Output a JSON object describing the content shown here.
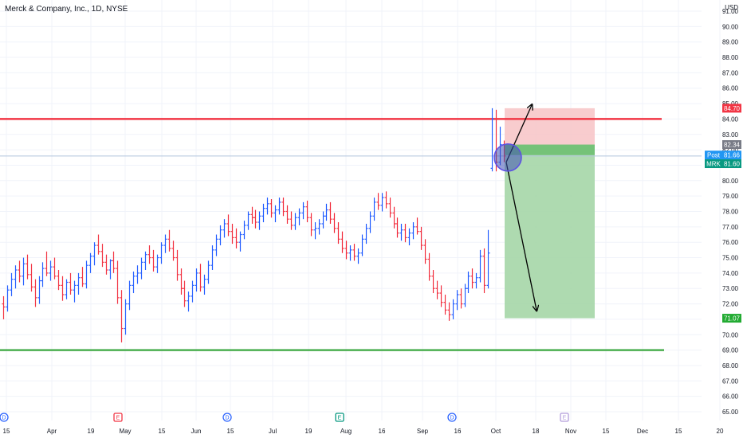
{
  "header": {
    "title": "Merck & Company, Inc., 1D, NYSE",
    "currency": "USD"
  },
  "price_axis": {
    "ticks": [
      "91.00",
      "90.00",
      "89.00",
      "88.00",
      "87.00",
      "86.00",
      "85.00",
      "84.00",
      "83.00",
      "82.00",
      "81.00",
      "80.00",
      "79.00",
      "78.00",
      "77.00",
      "76.00",
      "75.00",
      "74.00",
      "73.00",
      "72.00",
      "71.00",
      "70.00",
      "69.00",
      "68.00",
      "67.00",
      "66.00",
      "65.00"
    ]
  },
  "time_axis": {
    "labels": [
      "15",
      "Apr",
      "19",
      "May",
      "15",
      "Jun",
      "15",
      "Jul",
      "19",
      "Aug",
      "16",
      "Sep",
      "16",
      "Oct",
      "18",
      "Nov",
      "15",
      "Dec",
      "15",
      "20"
    ]
  },
  "price_tags": {
    "stop": {
      "label": "",
      "value": "84.70",
      "color": "#f23645"
    },
    "entry": {
      "label": "",
      "value": "82.34",
      "color": "#787b86"
    },
    "post": {
      "label": "Post",
      "value": "81.66",
      "color": "#2196f3"
    },
    "last": {
      "label": "MRK",
      "value": "81.60",
      "color": "#089981"
    },
    "target": {
      "label": "",
      "value": "71.07",
      "color": "#22ab32"
    }
  },
  "events": [
    {
      "letter": "D",
      "kind": "dividend"
    },
    {
      "letter": "E",
      "kind": "earnings"
    },
    {
      "letter": "D",
      "kind": "dividend"
    },
    {
      "letter": "E",
      "kind": "earnings"
    },
    {
      "letter": "D",
      "kind": "dividend"
    },
    {
      "letter": "E",
      "kind": "earnings"
    }
  ],
  "drawings": {
    "resistance_line": {
      "price": 84.0,
      "color": "#f23645"
    },
    "support_line": {
      "price": 69.0,
      "color": "#4caf50"
    },
    "position": {
      "stop": 84.7,
      "entry": 82.34,
      "target": 71.07,
      "profit_fill": "#a5d6a7",
      "loss_fill": "#f7c3c6"
    },
    "highlight_circle": {
      "price": 81.5,
      "color": "#3f51b5"
    }
  },
  "colors": {
    "up": "#2962ff",
    "down": "#f23645",
    "grid": "#f0f3fa",
    "crosshair_line": "#b2c5de"
  },
  "chart_data": {
    "type": "ohlc",
    "series": [
      {
        "values": [
          [
            72.0,
            72.5,
            71.0,
            71.8
          ],
          [
            71.8,
            73.2,
            71.5,
            72.9
          ],
          [
            72.9,
            74.0,
            72.5,
            73.6
          ],
          [
            73.6,
            74.5,
            73.0,
            74.2
          ],
          [
            74.2,
            74.8,
            73.4,
            73.8
          ],
          [
            73.8,
            75.0,
            73.2,
            74.6
          ],
          [
            74.6,
            75.2,
            73.6,
            73.9
          ],
          [
            73.9,
            74.6,
            72.8,
            73.1
          ],
          [
            73.1,
            73.6,
            71.8,
            72.4
          ],
          [
            72.4,
            73.8,
            72.0,
            73.5
          ],
          [
            73.5,
            74.7,
            73.1,
            74.3
          ],
          [
            74.3,
            75.4,
            73.8,
            74.0
          ],
          [
            74.0,
            74.8,
            73.5,
            74.4
          ],
          [
            74.4,
            75.0,
            73.6,
            73.8
          ],
          [
            73.8,
            74.2,
            72.9,
            73.2
          ],
          [
            73.2,
            73.8,
            72.2,
            72.6
          ],
          [
            72.6,
            73.6,
            72.3,
            73.4
          ],
          [
            73.4,
            74.0,
            72.6,
            72.9
          ],
          [
            72.9,
            73.5,
            72.1,
            73.2
          ],
          [
            73.2,
            74.0,
            72.6,
            73.7
          ],
          [
            73.7,
            74.4,
            73.1,
            73.3
          ],
          [
            73.3,
            74.8,
            73.0,
            74.5
          ],
          [
            74.5,
            75.3,
            74.0,
            75.1
          ],
          [
            75.1,
            76.0,
            74.5,
            75.8
          ],
          [
            75.8,
            76.5,
            75.2,
            75.4
          ],
          [
            75.4,
            75.9,
            74.4,
            74.7
          ],
          [
            74.7,
            75.2,
            73.9,
            74.2
          ],
          [
            74.2,
            74.9,
            73.6,
            74.8
          ],
          [
            74.8,
            75.4,
            74.0,
            74.3
          ],
          [
            74.3,
            74.8,
            72.0,
            72.4
          ],
          [
            72.4,
            72.9,
            69.5,
            70.4
          ],
          [
            70.4,
            72.3,
            70.0,
            72.0
          ],
          [
            72.0,
            73.5,
            71.6,
            73.2
          ],
          [
            73.2,
            74.1,
            72.7,
            73.8
          ],
          [
            73.8,
            74.5,
            73.3,
            74.0
          ],
          [
            74.0,
            75.0,
            73.6,
            74.7
          ],
          [
            74.7,
            75.4,
            74.2,
            75.2
          ],
          [
            75.2,
            75.8,
            74.6,
            75.0
          ],
          [
            75.0,
            75.5,
            74.1,
            74.4
          ],
          [
            74.4,
            75.2,
            74.0,
            75.0
          ],
          [
            75.0,
            76.0,
            74.6,
            75.8
          ],
          [
            75.8,
            76.5,
            75.3,
            76.2
          ],
          [
            76.2,
            76.8,
            75.4,
            75.6
          ],
          [
            75.6,
            76.1,
            74.8,
            75.0
          ],
          [
            75.0,
            75.5,
            73.5,
            73.9
          ],
          [
            73.9,
            74.3,
            72.6,
            73.0
          ],
          [
            73.0,
            73.5,
            71.8,
            72.2
          ],
          [
            72.2,
            72.8,
            71.5,
            72.5
          ],
          [
            72.5,
            73.5,
            72.1,
            73.2
          ],
          [
            73.2,
            74.3,
            72.8,
            74.0
          ],
          [
            74.0,
            74.6,
            72.8,
            73.1
          ],
          [
            73.1,
            73.9,
            72.6,
            73.6
          ],
          [
            73.6,
            74.8,
            73.3,
            74.5
          ],
          [
            74.5,
            75.8,
            74.2,
            75.5
          ],
          [
            75.5,
            76.5,
            75.1,
            76.2
          ],
          [
            76.2,
            77.1,
            75.8,
            76.8
          ],
          [
            76.8,
            77.5,
            76.3,
            77.2
          ],
          [
            77.2,
            77.8,
            76.4,
            76.7
          ],
          [
            76.7,
            77.2,
            75.9,
            76.3
          ],
          [
            76.3,
            76.9,
            75.6,
            76.0
          ],
          [
            76.0,
            76.7,
            75.4,
            76.5
          ],
          [
            76.5,
            77.4,
            76.2,
            77.1
          ],
          [
            77.1,
            78.0,
            76.8,
            77.8
          ],
          [
            77.8,
            78.3,
            77.2,
            77.6
          ],
          [
            77.6,
            78.1,
            76.9,
            77.3
          ],
          [
            77.3,
            78.0,
            76.8,
            77.7
          ],
          [
            77.7,
            78.5,
            77.3,
            78.2
          ],
          [
            78.2,
            78.9,
            77.8,
            78.5
          ],
          [
            78.5,
            78.8,
            77.6,
            77.9
          ],
          [
            77.9,
            78.4,
            77.3,
            78.1
          ],
          [
            78.1,
            78.9,
            77.8,
            78.6
          ],
          [
            78.6,
            78.9,
            77.7,
            78.0
          ],
          [
            78.0,
            78.4,
            77.2,
            77.5
          ],
          [
            77.5,
            78.0,
            76.8,
            77.1
          ],
          [
            77.1,
            77.9,
            76.8,
            77.6
          ],
          [
            77.6,
            78.2,
            77.1,
            77.9
          ],
          [
            77.9,
            78.6,
            77.5,
            78.3
          ],
          [
            78.3,
            78.7,
            77.3,
            77.6
          ],
          [
            77.6,
            77.9,
            76.4,
            76.8
          ],
          [
            76.8,
            77.3,
            76.2,
            76.9
          ],
          [
            76.9,
            77.5,
            76.5,
            77.2
          ],
          [
            77.2,
            78.0,
            76.9,
            77.7
          ],
          [
            77.7,
            78.5,
            77.4,
            78.1
          ],
          [
            78.1,
            78.6,
            77.2,
            77.5
          ],
          [
            77.5,
            77.9,
            76.6,
            76.9
          ],
          [
            76.9,
            77.3,
            75.9,
            76.2
          ],
          [
            76.2,
            76.7,
            75.3,
            75.6
          ],
          [
            75.6,
            76.1,
            74.9,
            75.3
          ],
          [
            75.3,
            75.8,
            74.8,
            75.5
          ],
          [
            75.5,
            75.9,
            74.8,
            75.1
          ],
          [
            75.1,
            75.6,
            74.6,
            75.3
          ],
          [
            75.3,
            76.5,
            75.1,
            76.2
          ],
          [
            76.2,
            77.2,
            75.9,
            76.9
          ],
          [
            76.9,
            78.0,
            76.6,
            77.7
          ],
          [
            77.7,
            78.9,
            77.4,
            78.6
          ],
          [
            78.6,
            79.2,
            78.1,
            78.4
          ],
          [
            78.4,
            79.2,
            78.0,
            78.9
          ],
          [
            78.9,
            79.3,
            78.2,
            78.5
          ],
          [
            78.5,
            78.9,
            77.6,
            77.9
          ],
          [
            77.9,
            78.3,
            76.9,
            77.2
          ],
          [
            77.2,
            77.6,
            76.3,
            76.6
          ],
          [
            76.6,
            77.2,
            76.1,
            76.8
          ],
          [
            76.8,
            77.2,
            76.0,
            76.3
          ],
          [
            76.3,
            76.9,
            75.8,
            76.6
          ],
          [
            76.6,
            77.3,
            76.2,
            77.0
          ],
          [
            77.0,
            77.6,
            76.5,
            76.7
          ],
          [
            76.7,
            77.0,
            75.5,
            75.8
          ],
          [
            75.8,
            76.2,
            74.6,
            74.9
          ],
          [
            74.9,
            75.3,
            73.5,
            73.8
          ],
          [
            73.8,
            74.2,
            72.7,
            73.0
          ],
          [
            73.0,
            73.5,
            72.3,
            72.7
          ],
          [
            72.7,
            73.2,
            71.8,
            72.1
          ],
          [
            72.1,
            72.6,
            71.3,
            71.6
          ],
          [
            71.6,
            72.1,
            70.9,
            71.3
          ],
          [
            71.3,
            72.3,
            71.0,
            72.0
          ],
          [
            72.0,
            72.9,
            71.6,
            72.6
          ],
          [
            72.6,
            73.0,
            71.7,
            72.0
          ],
          [
            72.0,
            73.3,
            71.8,
            73.0
          ],
          [
            73.0,
            74.1,
            72.7,
            73.8
          ],
          [
            73.8,
            74.3,
            73.0,
            73.4
          ],
          [
            73.4,
            74.0,
            73.0,
            73.7
          ],
          [
            73.7,
            75.5,
            73.4,
            75.1
          ],
          [
            75.1,
            75.6,
            72.7,
            73.2
          ],
          [
            73.2,
            76.8,
            73.0,
            75.3
          ],
          [
            80.8,
            84.7,
            80.6,
            84.0
          ],
          [
            84.0,
            84.6,
            80.6,
            81.2
          ],
          [
            81.2,
            83.5,
            81.0,
            82.34
          ],
          [
            82.34,
            82.6,
            81.2,
            81.6
          ]
        ]
      }
    ],
    "ylim": [
      65.0,
      91.5
    ],
    "ylabel": "",
    "xlabel": ""
  }
}
